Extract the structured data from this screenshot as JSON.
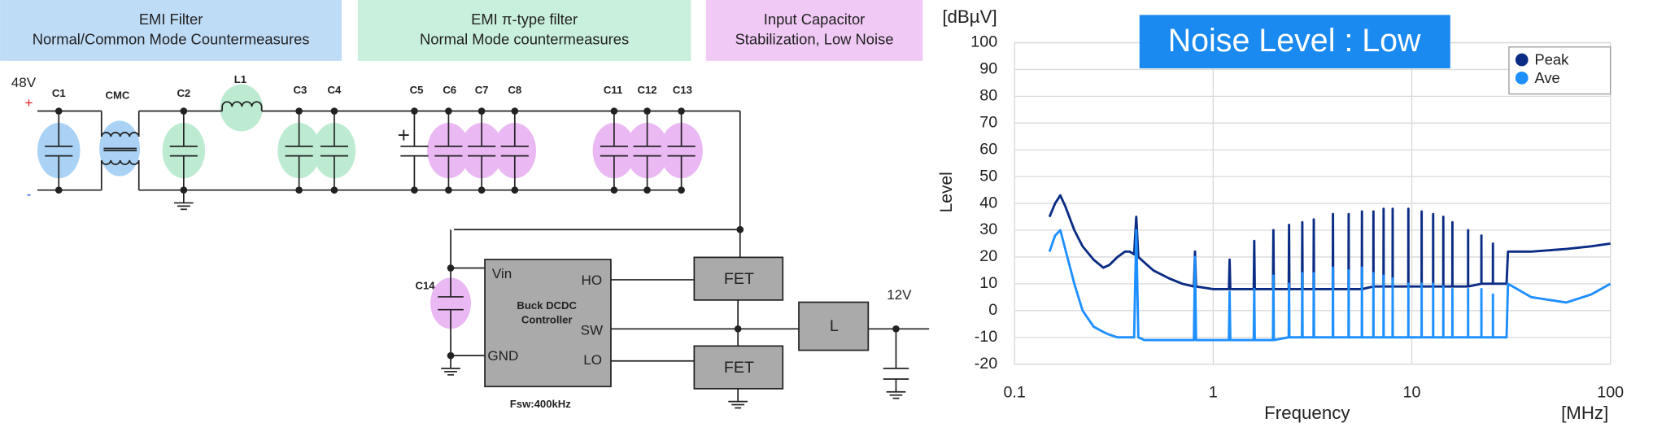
{
  "diagram": {
    "header_boxes": [
      [
        "EMI Filter",
        "Normal/Common Mode Countermeasures"
      ],
      [
        "EMI π-type filter",
        "Normal Mode countermeasures"
      ],
      [
        "Input Capacitor",
        "Stabilization, Low Noise"
      ]
    ],
    "labels": {
      "input_voltage": "48V",
      "plus": "+",
      "minus": "-",
      "c1": "C1",
      "cmc": "CMC",
      "c2": "C2",
      "l1": "L1",
      "c3": "C3",
      "c4": "C4",
      "c5": "C5",
      "c5_polarity": "+",
      "c6": "C6",
      "c7": "C7",
      "c8": "C8",
      "c11": "C11",
      "c12": "C12",
      "c13": "C13",
      "c14": "C14",
      "vin": "Vin",
      "gnd": "GND",
      "ho": "HO",
      "sw": "SW",
      "lo": "LO",
      "controller_line1": "Buck DCDC",
      "controller_line2": "Controller",
      "fsw": "Fsw:400kHz",
      "fet_high": "FET",
      "fet_low": "FET",
      "inductor": "L",
      "output_voltage": "12V"
    }
  },
  "chart_data": {
    "type": "line",
    "title": "Noise Level : Low",
    "y_label": "Level",
    "x_label": "Frequency",
    "y_unit": "[dBµV]",
    "x_unit": "[MHz]",
    "x": [
      0.15,
      0.16,
      0.17,
      0.18,
      0.2,
      0.22,
      0.25,
      0.28,
      0.3,
      0.33,
      0.36,
      0.38,
      0.4,
      0.41,
      0.42,
      0.45,
      0.5,
      0.6,
      0.7,
      0.8,
      0.81,
      0.82,
      1,
      1.2,
      1.21,
      1.22,
      1.6,
      1.61,
      1.62,
      2,
      2.01,
      2.02,
      2.4,
      2.41,
      2.42,
      2.8,
      2.81,
      2.82,
      3.2,
      3.21,
      3.22,
      4,
      4.01,
      4.02,
      4.8,
      4.81,
      4.82,
      5.6,
      5.61,
      5.62,
      6.4,
      6.41,
      6.42,
      7.2,
      7.21,
      7.22,
      8,
      8.01,
      8.02,
      9.6,
      9.61,
      9.62,
      11.2,
      11.21,
      11.22,
      12.8,
      12.81,
      12.82,
      14.4,
      14.41,
      14.42,
      16,
      16.01,
      16.02,
      19.2,
      19.21,
      19.22,
      22.4,
      22.41,
      22.42,
      25.6,
      25.61,
      25.62,
      30,
      30.5,
      40,
      60,
      80,
      100
    ],
    "series": [
      {
        "name": "Peak",
        "color": "#0b2c84",
        "values": [
          35,
          40,
          43,
          39,
          30,
          24,
          19,
          16,
          17,
          20,
          22,
          22,
          21,
          35,
          20,
          18,
          15,
          12,
          10,
          9,
          22,
          9,
          8,
          8,
          19,
          8,
          8,
          26,
          8,
          8,
          30,
          8,
          8,
          32,
          8,
          8,
          33,
          8,
          8,
          34,
          8,
          8,
          36,
          8,
          8,
          36,
          8,
          8,
          37,
          8,
          9,
          37,
          9,
          9,
          38,
          9,
          9,
          38,
          9,
          9,
          38,
          9,
          9,
          37,
          9,
          9,
          36,
          9,
          9,
          35,
          9,
          9,
          33,
          9,
          9,
          30,
          9,
          10,
          28,
          10,
          10,
          25,
          10,
          10,
          22,
          22,
          23,
          24,
          25
        ]
      },
      {
        "name": "Ave",
        "color": "#1e8fff",
        "values": [
          22,
          28,
          30,
          23,
          10,
          0,
          -6,
          -8,
          -9,
          -10,
          -10,
          -10,
          -10,
          30,
          -10,
          -11,
          -11,
          -11,
          -11,
          -11,
          20,
          -11,
          -11,
          -11,
          7,
          -11,
          -11,
          8,
          -11,
          -11,
          13,
          -11,
          -10,
          10,
          -10,
          -10,
          14,
          -10,
          -10,
          14,
          -10,
          -10,
          16,
          -10,
          -10,
          15,
          -10,
          -10,
          16,
          -10,
          -10,
          14,
          -10,
          -10,
          13,
          -10,
          -10,
          12,
          -10,
          -10,
          10,
          -10,
          -10,
          10,
          -10,
          -10,
          10,
          -10,
          -10,
          9,
          -10,
          -10,
          8,
          -10,
          -10,
          8,
          -10,
          -10,
          8,
          -10,
          -10,
          6,
          -10,
          -10,
          10,
          5,
          3,
          6,
          10
        ]
      }
    ],
    "xlim": [
      0.1,
      100
    ],
    "xticks": [
      0.1,
      1,
      10,
      100
    ],
    "log_x": true,
    "ylim": [
      -20,
      100
    ],
    "yticks": [
      -20,
      -10,
      0,
      10,
      20,
      30,
      40,
      50,
      60,
      70,
      80,
      90,
      100
    ],
    "grid": true,
    "legend": "top-right"
  }
}
